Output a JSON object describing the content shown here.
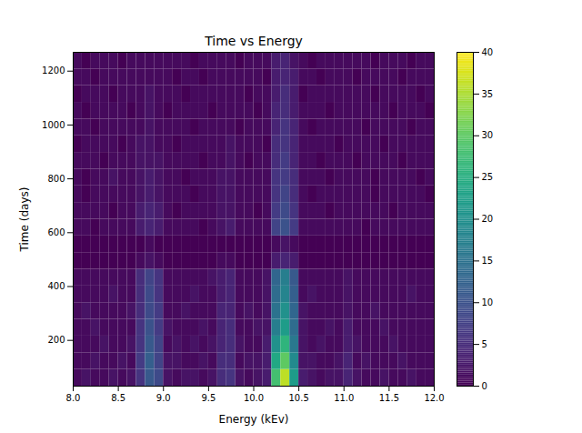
{
  "chart_data": {
    "type": "heatmap",
    "title": "Time vs Energy",
    "x_label": "Energy (kEv)",
    "y_label": "Time (days)",
    "xlim": [
      8.0,
      12.0
    ],
    "ylim": [
      30,
      1270
    ],
    "xticks": [
      {
        "value": 8.0,
        "label": "8.0"
      },
      {
        "value": 8.5,
        "label": "8.5"
      },
      {
        "value": 9.0,
        "label": "9.0"
      },
      {
        "value": 9.5,
        "label": "9.5"
      },
      {
        "value": 10.0,
        "label": "10.0"
      },
      {
        "value": 10.5,
        "label": "10.5"
      },
      {
        "value": 11.0,
        "label": "11.0"
      },
      {
        "value": 11.5,
        "label": "11.5"
      },
      {
        "value": 12.0,
        "label": "12.0"
      }
    ],
    "yticks": [
      200,
      400,
      600,
      800,
      1000,
      1200
    ],
    "x_bins": [
      8.0,
      8.1,
      8.2,
      8.3,
      8.4,
      8.5,
      8.6,
      8.7,
      8.8,
      8.9,
      9.0,
      9.1,
      9.2,
      9.3,
      9.4,
      9.5,
      9.6,
      9.7,
      9.8,
      9.9,
      10.0,
      10.1,
      10.2,
      10.3,
      10.4,
      10.5,
      10.6,
      10.7,
      10.8,
      10.9,
      11.0,
      11.1,
      11.2,
      11.3,
      11.4,
      11.5,
      11.6,
      11.7,
      11.8,
      11.9,
      12.0
    ],
    "y_bins": [
      30,
      92,
      154,
      216,
      278,
      340,
      402,
      464,
      526,
      588,
      650,
      712,
      774,
      836,
      898,
      960,
      1022,
      1084,
      1146,
      1208,
      1270
    ],
    "cells": [
      [
        1,
        2,
        1,
        1,
        2,
        1,
        2,
        6,
        11,
        9,
        2,
        1,
        2,
        2,
        1,
        2,
        5,
        6,
        2,
        1,
        2,
        3,
        28,
        36,
        22,
        3,
        2,
        1,
        2,
        2,
        4,
        2,
        1,
        1,
        2,
        1,
        1,
        2,
        1,
        1
      ],
      [
        1,
        1,
        2,
        1,
        1,
        2,
        1,
        7,
        12,
        8,
        2,
        2,
        1,
        1,
        2,
        1,
        5,
        5,
        1,
        2,
        2,
        3,
        24,
        30,
        19,
        2,
        2,
        1,
        1,
        2,
        4,
        1,
        2,
        1,
        1,
        1,
        2,
        1,
        1,
        1
      ],
      [
        1,
        1,
        1,
        2,
        1,
        1,
        2,
        6,
        11,
        8,
        1,
        2,
        1,
        2,
        1,
        2,
        4,
        5,
        2,
        1,
        1,
        3,
        20,
        26,
        16,
        2,
        1,
        2,
        1,
        1,
        3,
        2,
        1,
        1,
        1,
        2,
        1,
        1,
        1,
        1
      ],
      [
        1,
        1,
        2,
        1,
        1,
        1,
        1,
        6,
        10,
        7,
        2,
        1,
        1,
        1,
        2,
        1,
        4,
        5,
        1,
        1,
        2,
        2,
        17,
        22,
        14,
        2,
        1,
        1,
        2,
        1,
        3,
        1,
        1,
        1,
        2,
        1,
        1,
        1,
        1,
        1
      ],
      [
        1,
        2,
        1,
        1,
        1,
        1,
        2,
        5,
        9,
        7,
        1,
        1,
        2,
        1,
        1,
        1,
        4,
        4,
        1,
        2,
        1,
        2,
        15,
        20,
        13,
        2,
        1,
        1,
        1,
        1,
        2,
        1,
        1,
        2,
        1,
        1,
        1,
        1,
        1,
        1
      ],
      [
        1,
        1,
        1,
        1,
        2,
        1,
        1,
        5,
        9,
        6,
        1,
        1,
        1,
        2,
        1,
        1,
        3,
        4,
        1,
        1,
        1,
        2,
        14,
        18,
        12,
        1,
        2,
        1,
        1,
        1,
        2,
        1,
        1,
        1,
        1,
        1,
        1,
        2,
        1,
        1
      ],
      [
        1,
        1,
        1,
        1,
        1,
        1,
        1,
        5,
        8,
        6,
        1,
        1,
        1,
        1,
        1,
        2,
        3,
        4,
        1,
        1,
        1,
        2,
        13,
        17,
        11,
        1,
        1,
        1,
        1,
        1,
        2,
        1,
        1,
        1,
        1,
        1,
        1,
        1,
        1,
        1
      ],
      [
        0,
        0,
        0,
        0,
        0,
        0,
        0,
        1,
        2,
        1,
        0,
        0,
        0,
        0,
        0,
        0,
        1,
        1,
        0,
        0,
        0,
        0,
        3,
        4,
        3,
        0,
        0,
        0,
        0,
        0,
        0,
        0,
        0,
        0,
        0,
        0,
        0,
        0,
        0,
        0
      ],
      [
        0,
        0,
        0,
        0,
        0,
        0,
        0,
        0,
        1,
        0,
        0,
        0,
        0,
        0,
        0,
        0,
        0,
        0,
        0,
        0,
        0,
        0,
        1,
        2,
        1,
        0,
        0,
        0,
        0,
        0,
        0,
        0,
        0,
        0,
        0,
        0,
        0,
        0,
        0,
        0
      ],
      [
        1,
        1,
        0,
        1,
        1,
        1,
        1,
        3,
        4,
        3,
        1,
        1,
        1,
        1,
        0,
        1,
        2,
        3,
        1,
        1,
        1,
        1,
        8,
        10,
        7,
        1,
        1,
        1,
        1,
        1,
        1,
        1,
        0,
        1,
        1,
        1,
        1,
        1,
        1,
        1
      ],
      [
        1,
        1,
        1,
        1,
        0,
        1,
        1,
        3,
        4,
        3,
        1,
        0,
        1,
        1,
        1,
        1,
        2,
        2,
        1,
        1,
        0,
        1,
        7,
        9,
        6,
        1,
        1,
        1,
        0,
        1,
        1,
        1,
        1,
        1,
        1,
        0,
        1,
        1,
        1,
        1
      ],
      [
        1,
        0,
        1,
        1,
        1,
        1,
        1,
        2,
        3,
        2,
        1,
        1,
        1,
        0,
        1,
        1,
        2,
        2,
        1,
        1,
        1,
        1,
        6,
        8,
        5,
        1,
        0,
        1,
        1,
        1,
        1,
        1,
        1,
        0,
        1,
        1,
        1,
        1,
        1,
        0
      ],
      [
        1,
        0,
        1,
        1,
        2,
        1,
        1,
        2,
        3,
        2,
        1,
        1,
        0,
        1,
        1,
        1,
        2,
        2,
        1,
        1,
        1,
        1,
        6,
        7,
        5,
        1,
        1,
        1,
        0,
        1,
        1,
        1,
        1,
        0,
        1,
        1,
        1,
        1,
        0,
        1
      ],
      [
        1,
        1,
        1,
        0,
        1,
        1,
        1,
        2,
        2,
        2,
        1,
        1,
        1,
        1,
        0,
        1,
        1,
        2,
        1,
        0,
        1,
        1,
        5,
        7,
        4,
        1,
        1,
        0,
        1,
        1,
        1,
        0,
        1,
        1,
        1,
        1,
        0,
        1,
        1,
        1
      ],
      [
        0,
        1,
        1,
        1,
        1,
        0,
        1,
        2,
        2,
        1,
        1,
        0,
        1,
        1,
        1,
        1,
        1,
        2,
        1,
        1,
        1,
        0,
        5,
        6,
        4,
        1,
        1,
        1,
        1,
        0,
        1,
        1,
        1,
        1,
        0,
        1,
        1,
        1,
        1,
        1
      ],
      [
        1,
        1,
        0,
        1,
        1,
        1,
        1,
        1,
        2,
        1,
        1,
        1,
        1,
        0,
        1,
        1,
        1,
        1,
        0,
        1,
        1,
        1,
        4,
        6,
        4,
        1,
        0,
        1,
        1,
        1,
        1,
        1,
        0,
        1,
        1,
        1,
        1,
        0,
        1,
        1
      ],
      [
        1,
        0,
        1,
        1,
        1,
        1,
        0,
        1,
        2,
        1,
        0,
        1,
        1,
        1,
        1,
        0,
        1,
        1,
        1,
        1,
        0,
        1,
        4,
        5,
        3,
        1,
        1,
        1,
        0,
        1,
        1,
        1,
        1,
        1,
        1,
        0,
        1,
        1,
        1,
        0
      ],
      [
        0,
        1,
        1,
        1,
        0,
        1,
        1,
        1,
        2,
        1,
        1,
        1,
        0,
        1,
        1,
        1,
        1,
        1,
        1,
        0,
        1,
        1,
        3,
        5,
        3,
        0,
        1,
        1,
        1,
        1,
        1,
        1,
        1,
        0,
        1,
        1,
        1,
        1,
        0,
        1
      ],
      [
        1,
        1,
        0,
        1,
        1,
        1,
        1,
        1,
        1,
        1,
        1,
        0,
        1,
        1,
        0,
        1,
        1,
        1,
        1,
        1,
        1,
        0,
        3,
        4,
        3,
        1,
        1,
        0,
        1,
        1,
        1,
        0,
        1,
        1,
        1,
        1,
        0,
        1,
        1,
        1
      ],
      [
        1,
        0,
        1,
        1,
        1,
        0,
        1,
        1,
        1,
        1,
        1,
        1,
        1,
        0,
        1,
        1,
        1,
        1,
        0,
        1,
        1,
        1,
        3,
        4,
        2,
        1,
        0,
        1,
        1,
        1,
        1,
        1,
        1,
        0,
        1,
        1,
        1,
        0,
        1,
        1
      ]
    ],
    "colorbar": {
      "range": [
        0,
        40
      ],
      "ticks": [
        0,
        5,
        10,
        15,
        20,
        25,
        30,
        35,
        40
      ]
    }
  }
}
